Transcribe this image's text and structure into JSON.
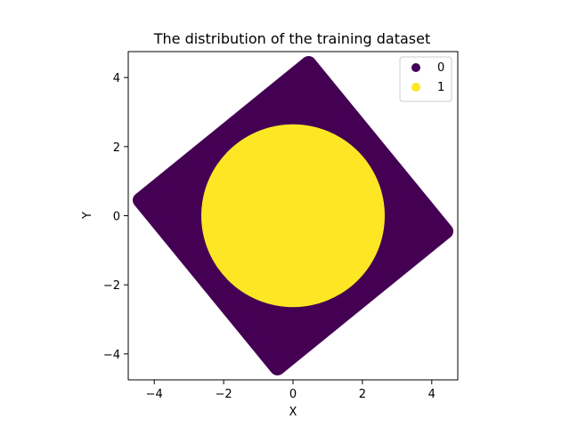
{
  "chart_data": {
    "type": "scatter",
    "title": "The distribution of the training dataset",
    "xlabel": "X",
    "ylabel": "Y",
    "xlim": [
      -4.75,
      4.75
    ],
    "ylim": [
      -4.75,
      4.75
    ],
    "xticks": [
      -4,
      -2,
      0,
      2,
      4
    ],
    "yticks": [
      -4,
      -2,
      0,
      2,
      4
    ],
    "xtick_labels": [
      "−4",
      "−2",
      "0",
      "2",
      "4"
    ],
    "ytick_labels": [
      "−4",
      "−2",
      "0",
      "2",
      "4"
    ],
    "grid": false,
    "legend_position": "top-right",
    "series": [
      {
        "name": "0",
        "color": "#440154",
        "shape": "rotated-square",
        "vertices": [
          [
            0.45,
            4.4
          ],
          [
            4.4,
            -0.45
          ],
          [
            -0.45,
            -4.4
          ],
          [
            -4.4,
            0.45
          ]
        ]
      },
      {
        "name": "1",
        "color": "#fde725",
        "shape": "disk",
        "center": [
          0,
          0
        ],
        "radius": 2.6
      }
    ]
  }
}
